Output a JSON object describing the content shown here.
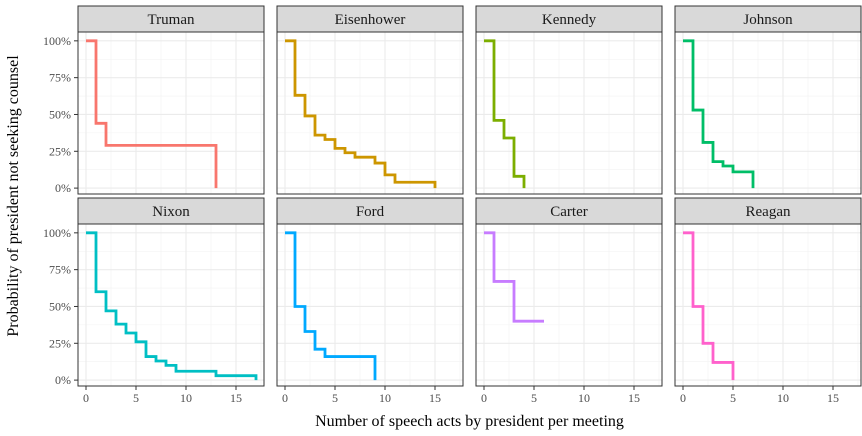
{
  "chart_data": {
    "type": "line",
    "step": true,
    "facets": [
      "Truman",
      "Eisenhower",
      "Kennedy",
      "Johnson",
      "Nixon",
      "Ford",
      "Carter",
      "Reagan"
    ],
    "xlabel": "Number of speech acts by president per meeting",
    "ylabel": "Probability of president not seeking counsel",
    "xlim": [
      -0.8,
      17.8
    ],
    "ylim": [
      -0.04,
      1.06
    ],
    "x_ticks": [
      0,
      5,
      10,
      15
    ],
    "y_ticks": [
      0,
      0.25,
      0.5,
      0.75,
      1.0
    ],
    "y_tick_labels": [
      "0%",
      "25%",
      "50%",
      "75%",
      "100%"
    ],
    "grid": true,
    "legend": "none",
    "series": [
      {
        "name": "Truman",
        "color": "#F8766D",
        "x": [
          0,
          1,
          2,
          13
        ],
        "y": [
          1.0,
          0.44,
          0.29,
          0.0
        ]
      },
      {
        "name": "Eisenhower",
        "color": "#CD9600",
        "x": [
          0,
          1,
          2,
          3,
          4,
          5,
          6,
          7,
          9,
          10,
          11,
          15
        ],
        "y": [
          1.0,
          0.63,
          0.49,
          0.36,
          0.33,
          0.27,
          0.24,
          0.21,
          0.17,
          0.09,
          0.04,
          0.0
        ]
      },
      {
        "name": "Kennedy",
        "color": "#7CAE00",
        "x": [
          0,
          1,
          2,
          3,
          4
        ],
        "y": [
          1.0,
          0.46,
          0.34,
          0.08,
          0.0
        ]
      },
      {
        "name": "Johnson",
        "color": "#00BE67",
        "x": [
          0,
          1,
          2,
          3,
          4,
          5,
          7
        ],
        "y": [
          1.0,
          0.53,
          0.31,
          0.18,
          0.15,
          0.11,
          0.0
        ]
      },
      {
        "name": "Nixon",
        "color": "#00BFC4",
        "x": [
          0,
          1,
          2,
          3,
          4,
          5,
          6,
          7,
          8,
          9,
          13,
          17
        ],
        "y": [
          1.0,
          0.6,
          0.47,
          0.38,
          0.32,
          0.26,
          0.16,
          0.13,
          0.1,
          0.06,
          0.03,
          0.0
        ]
      },
      {
        "name": "Ford",
        "color": "#00A9FF",
        "x": [
          0,
          1,
          2,
          3,
          4,
          9
        ],
        "y": [
          1.0,
          0.5,
          0.33,
          0.21,
          0.16,
          0.0
        ]
      },
      {
        "name": "Carter",
        "color": "#C77CFF",
        "x": [
          0,
          1,
          3,
          6
        ],
        "y": [
          1.0,
          0.67,
          0.4,
          0.4
        ]
      },
      {
        "name": "Reagan",
        "color": "#FF61CC",
        "x": [
          0,
          1,
          2,
          3,
          5
        ],
        "y": [
          1.0,
          0.5,
          0.25,
          0.12,
          0.0
        ]
      }
    ]
  }
}
